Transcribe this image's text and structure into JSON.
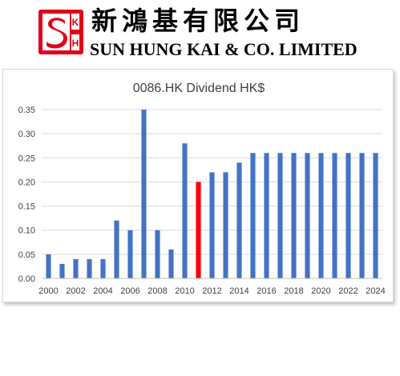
{
  "company": {
    "chinese_name": "新鴻基有限公司",
    "english_name": "SUN HUNG KAI & CO. LIMITED",
    "logo_letters": [
      "S",
      "K",
      "H"
    ],
    "brand_color": "#e3001b"
  },
  "chart_data": {
    "type": "bar",
    "title": "0086.HK Dividend HK$",
    "xlabel": "",
    "ylabel": "",
    "ylim": [
      0,
      0.35
    ],
    "yticks": [
      "0.00",
      "0.05",
      "0.10",
      "0.15",
      "0.20",
      "0.25",
      "0.30",
      "0.35"
    ],
    "xtick_labels": [
      "2000",
      "2002",
      "2004",
      "2006",
      "2008",
      "2010",
      "2012",
      "2014",
      "2016",
      "2018",
      "2020",
      "2022",
      "2024"
    ],
    "categories": [
      "2000",
      "2001",
      "2002",
      "2003",
      "2004",
      "2005",
      "2006",
      "2007",
      "2008",
      "2009",
      "2010",
      "2011",
      "2012",
      "2013",
      "2014",
      "2015",
      "2016",
      "2017",
      "2018",
      "2019",
      "2020",
      "2021",
      "2022",
      "2023",
      "2024"
    ],
    "values": [
      0.05,
      0.03,
      0.04,
      0.04,
      0.04,
      0.12,
      0.1,
      0.35,
      0.1,
      0.06,
      0.28,
      0.2,
      0.22,
      0.22,
      0.24,
      0.26,
      0.26,
      0.26,
      0.26,
      0.26,
      0.26,
      0.26,
      0.26,
      0.26,
      0.26
    ],
    "highlight": "2011",
    "bar_color": "#4472c4",
    "highlight_color": "#ff0000",
    "grid": true
  }
}
